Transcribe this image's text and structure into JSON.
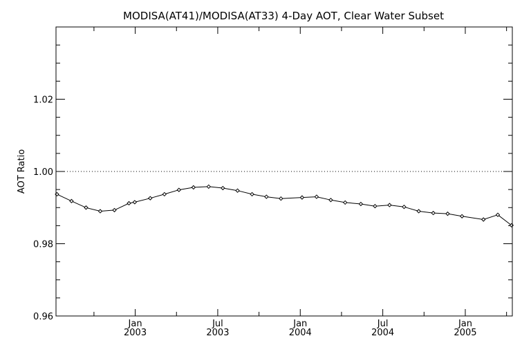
{
  "chart_data": {
    "type": "line",
    "title": "MODISA(AT41)/MODISA(AT33) 4-Day AOT, Clear Water Subset",
    "xlabel": "",
    "ylabel": "AOT Ratio",
    "xlim": [
      2002.52,
      2005.285
    ],
    "ylim": [
      0.96,
      1.04
    ],
    "grid": false,
    "reference_line": {
      "y": 1.0,
      "style": "dotted"
    },
    "y_ticks": [
      {
        "value": 0.96,
        "label": "0.96"
      },
      {
        "value": 0.98,
        "label": "0.98"
      },
      {
        "value": 1.0,
        "label": "1.00"
      },
      {
        "value": 1.02,
        "label": "1.02"
      }
    ],
    "y_minor_step": 0.005,
    "x_ticks": [
      {
        "value": 2003.0,
        "label": "Jan",
        "year": "2003"
      },
      {
        "value": 2003.5,
        "label": "Jul",
        "year": "2003"
      },
      {
        "value": 2004.0,
        "label": "Jan",
        "year": "2004"
      },
      {
        "value": 2004.5,
        "label": "Jul",
        "year": "2004"
      },
      {
        "value": 2005.0,
        "label": "Jan",
        "year": "2005"
      }
    ],
    "x_minor_step": 0.25,
    "series": [
      {
        "name": "AOT Ratio",
        "marker": "diamond",
        "x": [
          2002.526,
          2002.614,
          2002.702,
          2002.788,
          2002.874,
          2002.962,
          2002.997,
          2003.091,
          2003.177,
          2003.265,
          2003.353,
          2003.445,
          2003.531,
          2003.62,
          2003.708,
          2003.795,
          2003.883,
          2004.011,
          2004.099,
          2004.185,
          2004.272,
          2004.367,
          2004.453,
          2004.541,
          2004.629,
          2004.718,
          2004.806,
          2004.893,
          2004.98,
          2005.11,
          2005.197,
          2005.28
        ],
        "y": [
          0.9937,
          0.9918,
          0.99,
          0.989,
          0.9893,
          0.9912,
          0.9915,
          0.9926,
          0.9937,
          0.9949,
          0.9956,
          0.9958,
          0.9954,
          0.9947,
          0.9937,
          0.993,
          0.9925,
          0.9928,
          0.993,
          0.9921,
          0.9914,
          0.991,
          0.9904,
          0.9907,
          0.9902,
          0.989,
          0.9885,
          0.9883,
          0.9876,
          0.9867,
          0.988,
          0.9851
        ]
      }
    ]
  }
}
